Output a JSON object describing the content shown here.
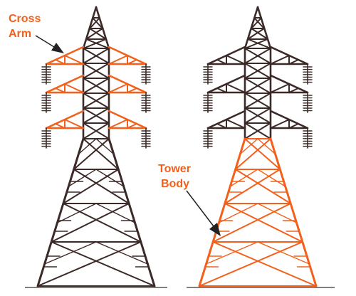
{
  "diagram": {
    "labels": {
      "cross_arm_line1": "Cross",
      "cross_arm_line2": "Arm",
      "tower_body_line1": "Tower",
      "tower_body_line2": "Body"
    },
    "colors": {
      "structure": "#3b2a27",
      "highlight": "#f2601b",
      "ground": "#555555",
      "background": "#ffffff"
    },
    "towers": [
      {
        "name": "left-tower",
        "highlighted_part": "cross-arm"
      },
      {
        "name": "right-tower",
        "highlighted_part": "tower-body"
      }
    ]
  }
}
